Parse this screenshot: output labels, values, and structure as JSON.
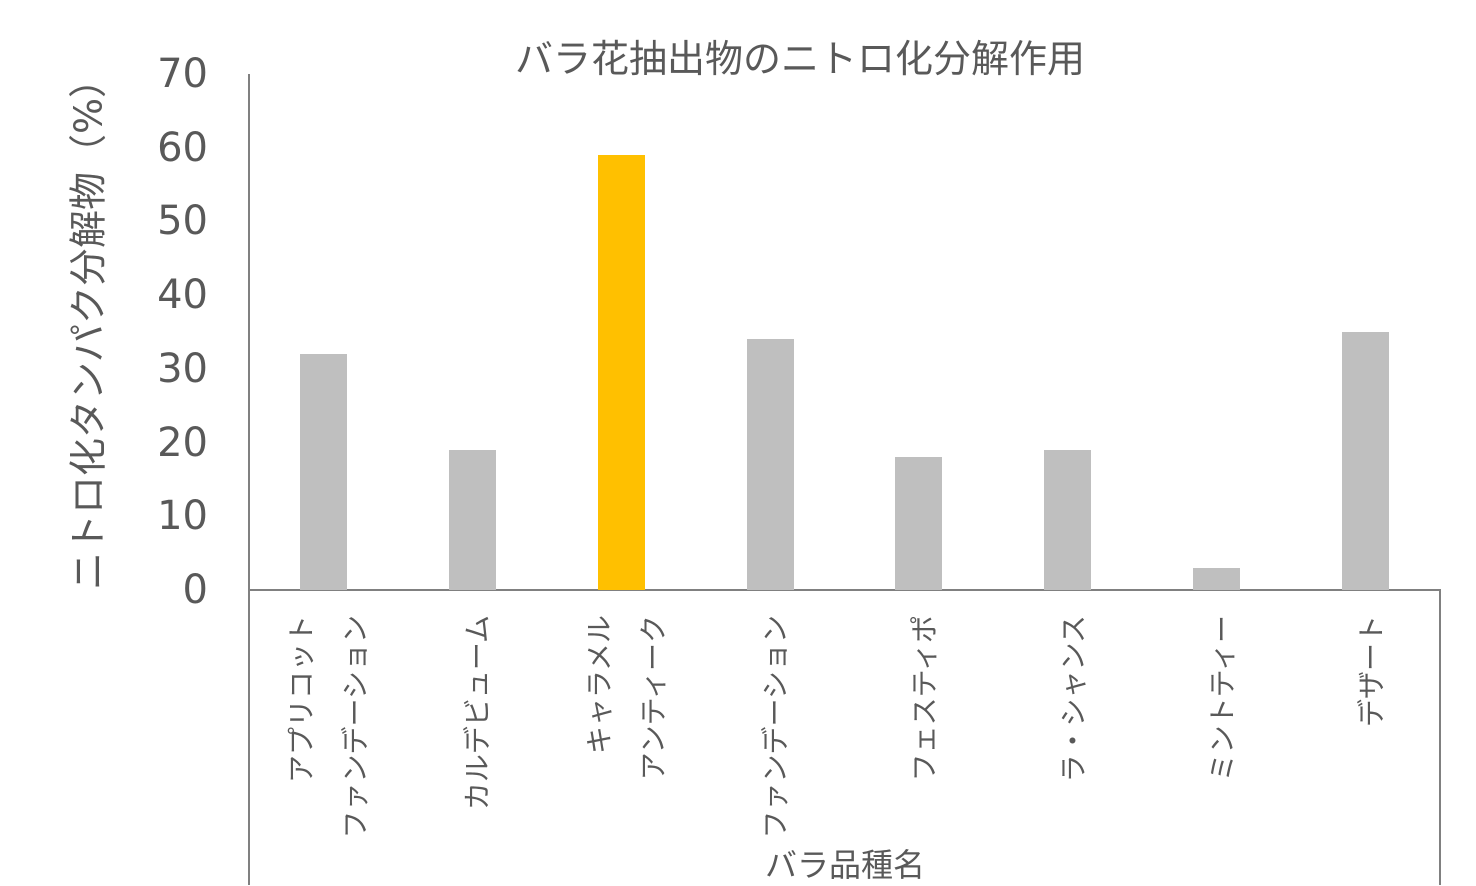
{
  "chart_data": {
    "type": "bar",
    "title": "バラ花抽出物のニトロ化分解作用",
    "xlabel": "バラ品種名",
    "ylabel": "ニトロ化タンパク分解物（%）",
    "ylim": [
      0,
      70
    ],
    "yticks": [
      "0",
      "10",
      "20",
      "30",
      "40",
      "50",
      "60",
      "70"
    ],
    "grid": false,
    "legend": null,
    "categories": [
      "アプリコット ファンデーション",
      "カルデビューム",
      "キャラメル アンティーク",
      "ファンデーション",
      "フェスティポ",
      "ラ・シャンス",
      "ミントティー",
      "デザート"
    ],
    "category_lines": [
      [
        "アプリコット",
        "ファンデーション"
      ],
      [
        "カルデビューム"
      ],
      [
        "キャラメル",
        "アンティーク"
      ],
      [
        "ファンデーション"
      ],
      [
        "フェスティポ"
      ],
      [
        "ラ・シャンス"
      ],
      [
        "ミントティー"
      ],
      [
        "デザート"
      ]
    ],
    "values": [
      32,
      19,
      59,
      34,
      18,
      19,
      3,
      35
    ],
    "colors": [
      "#bfbfbf",
      "#bfbfbf",
      "#ffc000",
      "#bfbfbf",
      "#bfbfbf",
      "#bfbfbf",
      "#bfbfbf",
      "#bfbfbf"
    ],
    "highlight_index": 2
  }
}
